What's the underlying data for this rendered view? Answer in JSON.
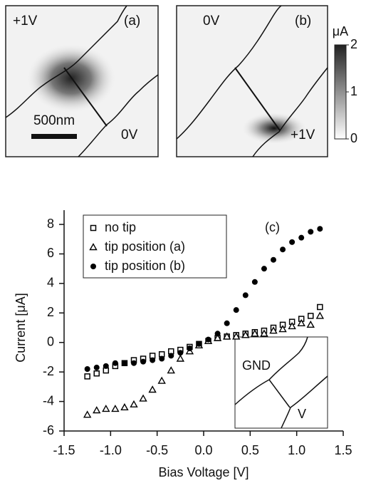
{
  "images": {
    "panel_a": {
      "tag": "(a)",
      "left_label": "+1V",
      "right_label": "0V",
      "scalebar": "500nm"
    },
    "panel_b": {
      "tag": "(b)",
      "left_label": "0V",
      "right_label": "+1V"
    },
    "colorbar": {
      "label": "μA",
      "lim": [
        0,
        2
      ],
      "ticks": [
        0,
        1,
        2
      ]
    }
  },
  "chart_data": {
    "type": "scatter",
    "xlabel": "Bias Voltage [V]",
    "ylabel": "Current [μA]",
    "annotation": "(c)",
    "inset": {
      "top_label": "GND",
      "bottom_label": "V"
    },
    "xlim": [
      -1.5,
      1.5
    ],
    "ylim": [
      -6,
      8
    ],
    "xticks": [
      -1.5,
      {
        "value": -1,
        "label": "-1.0"
      },
      -0.5,
      {
        "value": 0,
        "label": "0.0"
      },
      0.5,
      {
        "value": 1,
        "label": "1.0"
      },
      1.5
    ],
    "yticks": [
      -6,
      -4,
      -2,
      0,
      2,
      4,
      6,
      8
    ],
    "legend": "upper left",
    "x": [
      -1.25,
      -1.15,
      -1.05,
      -0.95,
      -0.85,
      -0.75,
      -0.65,
      -0.55,
      -0.45,
      -0.35,
      -0.25,
      -0.15,
      -0.05,
      0.05,
      0.15,
      0.25,
      0.35,
      0.45,
      0.55,
      0.65,
      0.75,
      0.85,
      0.95,
      1.05,
      1.15,
      1.25
    ],
    "series": [
      {
        "name": "no tip",
        "color": "#000000",
        "marker": "square",
        "values": [
          -2.3,
          -2.1,
          -1.9,
          -1.6,
          -1.4,
          -1.2,
          -1.1,
          -0.9,
          -0.8,
          -0.6,
          -0.5,
          -0.3,
          -0.1,
          0.1,
          0.3,
          0.4,
          0.5,
          0.6,
          0.7,
          0.8,
          1.0,
          1.2,
          1.4,
          1.6,
          1.8,
          2.4
        ]
      },
      {
        "name": "tip position (a)",
        "color": "#000000",
        "marker": "triangle",
        "values": [
          -4.9,
          -4.6,
          -4.5,
          -4.5,
          -4.4,
          -4.2,
          -3.8,
          -3.2,
          -2.6,
          -1.9,
          -1.1,
          -0.6,
          -0.2,
          0.1,
          0.3,
          0.4,
          0.4,
          0.5,
          0.6,
          0.6,
          0.8,
          0.9,
          1.1,
          1.3,
          1.2,
          1.8
        ]
      },
      {
        "name": "tip position (b)",
        "color": "#000000",
        "marker": "circle",
        "values": [
          -1.8,
          -1.7,
          -1.6,
          -1.4,
          -1.4,
          -1.4,
          -1.3,
          -1.2,
          -1.1,
          -0.9,
          -0.7,
          -0.4,
          -0.1,
          0.2,
          0.6,
          1.3,
          2.2,
          3.2,
          4.1,
          5.0,
          5.6,
          6.3,
          6.8,
          7.1,
          7.5,
          7.7
        ]
      }
    ]
  }
}
